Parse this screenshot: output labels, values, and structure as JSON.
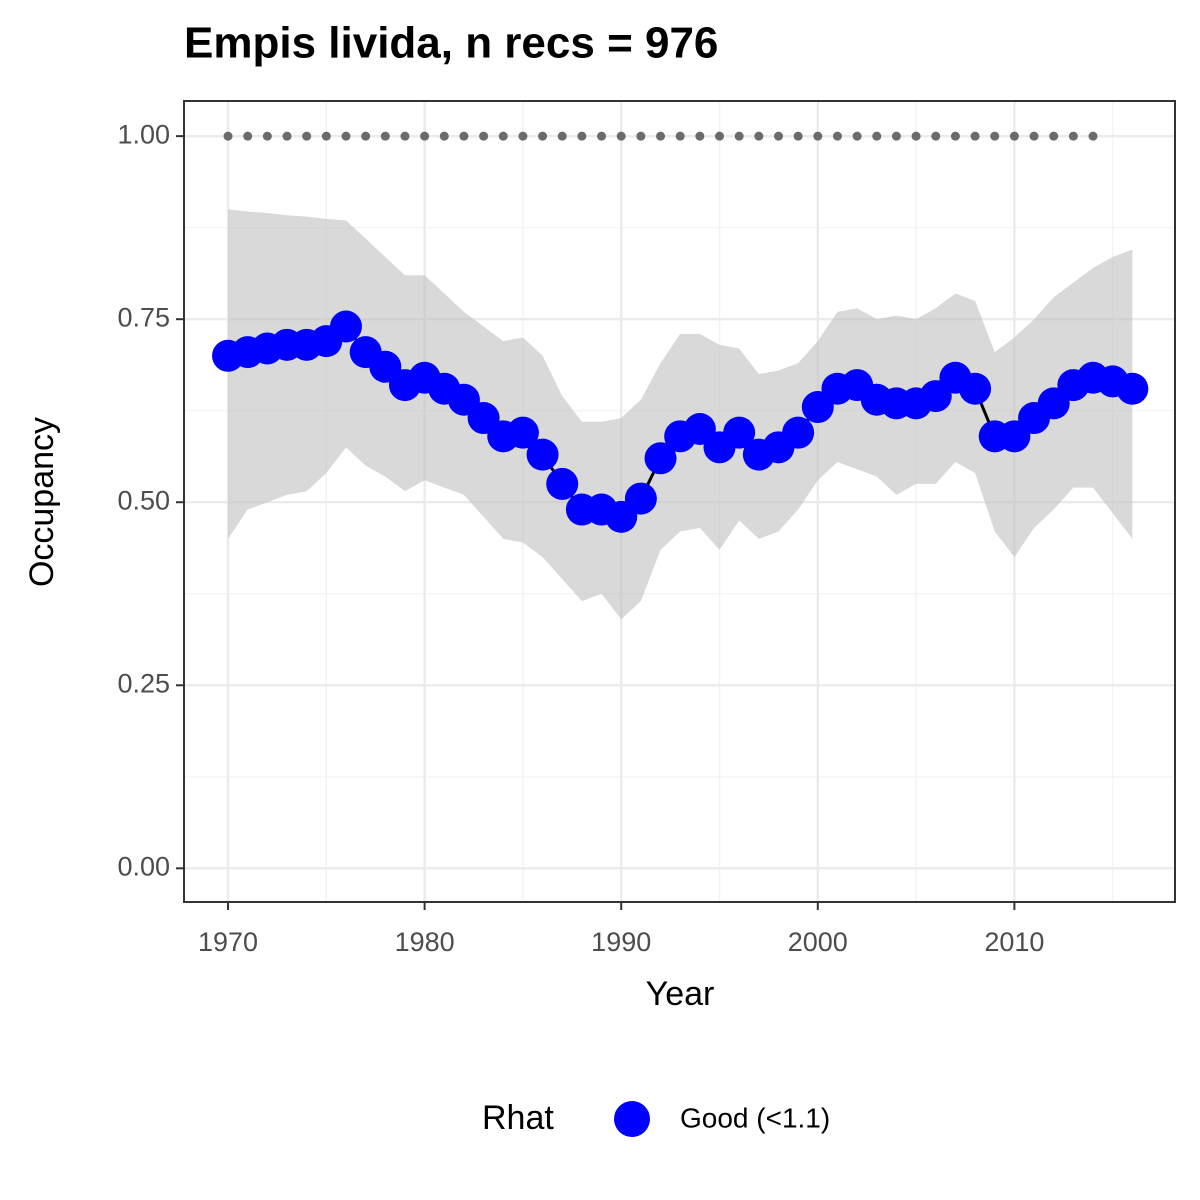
{
  "chart_data": {
    "type": "line",
    "title": "Empis livida, n recs = 976",
    "x_label": "Year",
    "y_label": "Occupancy",
    "legend_title": "Rhat",
    "legend_position": "bottom",
    "grid": true,
    "x": [
      1970,
      1971,
      1972,
      1973,
      1974,
      1975,
      1976,
      1977,
      1978,
      1979,
      1980,
      1981,
      1982,
      1983,
      1984,
      1985,
      1986,
      1987,
      1988,
      1989,
      1990,
      1991,
      1992,
      1993,
      1994,
      1995,
      1996,
      1997,
      1998,
      1999,
      2000,
      2001,
      2002,
      2003,
      2004,
      2005,
      2006,
      2007,
      2008,
      2009,
      2010,
      2011,
      2012,
      2013,
      2014,
      2015,
      2016
    ],
    "series": [
      {
        "name": "Good (<1.1)",
        "color": "#0000ff",
        "values": [
          0.7,
          0.705,
          0.71,
          0.715,
          0.715,
          0.72,
          0.74,
          0.705,
          0.685,
          0.66,
          0.67,
          0.655,
          0.64,
          0.615,
          0.59,
          0.595,
          0.565,
          0.525,
          0.49,
          0.49,
          0.48,
          0.505,
          0.56,
          0.59,
          0.6,
          0.575,
          0.595,
          0.565,
          0.575,
          0.595,
          0.63,
          0.655,
          0.66,
          0.64,
          0.635,
          0.635,
          0.645,
          0.67,
          0.655,
          0.59,
          0.59,
          0.615,
          0.635,
          0.66,
          0.67,
          0.665,
          0.655
        ],
        "upper": [
          0.9,
          0.897,
          0.895,
          0.892,
          0.89,
          0.887,
          0.885,
          0.86,
          0.835,
          0.81,
          0.81,
          0.785,
          0.76,
          0.74,
          0.72,
          0.725,
          0.7,
          0.645,
          0.61,
          0.61,
          0.615,
          0.64,
          0.69,
          0.73,
          0.73,
          0.715,
          0.71,
          0.675,
          0.68,
          0.69,
          0.72,
          0.76,
          0.765,
          0.75,
          0.755,
          0.75,
          0.765,
          0.785,
          0.775,
          0.705,
          0.725,
          0.75,
          0.78,
          0.8,
          0.82,
          0.835,
          0.845
        ],
        "lower": [
          0.45,
          0.49,
          0.5,
          0.51,
          0.515,
          0.54,
          0.575,
          0.55,
          0.535,
          0.515,
          0.53,
          0.52,
          0.51,
          0.48,
          0.45,
          0.445,
          0.425,
          0.395,
          0.365,
          0.375,
          0.34,
          0.365,
          0.435,
          0.46,
          0.465,
          0.435,
          0.475,
          0.45,
          0.46,
          0.49,
          0.53,
          0.555,
          0.545,
          0.535,
          0.51,
          0.525,
          0.525,
          0.555,
          0.54,
          0.46,
          0.425,
          0.465,
          0.49,
          0.52,
          0.52,
          0.485,
          0.45
        ]
      }
    ],
    "reference": {
      "color": "#6b6b6b",
      "x": [
        1970,
        1971,
        1972,
        1973,
        1974,
        1975,
        1976,
        1977,
        1978,
        1979,
        1980,
        1981,
        1982,
        1983,
        1984,
        1985,
        1986,
        1987,
        1988,
        1989,
        1990,
        1991,
        1992,
        1993,
        1994,
        1995,
        1996,
        1997,
        1998,
        1999,
        2000,
        2001,
        2002,
        2003,
        2004,
        2005,
        2006,
        2007,
        2008,
        2009,
        2010,
        2011,
        2012,
        2013,
        2014
      ],
      "values": [
        1,
        1,
        1,
        1,
        1,
        1,
        1,
        1,
        1,
        1,
        1,
        1,
        1,
        1,
        1,
        1,
        1,
        1,
        1,
        1,
        1,
        1,
        1,
        1,
        1,
        1,
        1,
        1,
        1,
        1,
        1,
        1,
        1,
        1,
        1,
        1,
        1,
        1,
        1,
        1,
        1,
        1,
        1,
        1,
        1
      ]
    },
    "band_color": "#bfbfbf",
    "xlim": [
      1967.76,
      2018.17
    ],
    "ylim": [
      -0.046,
      1.048
    ],
    "xticks": [
      1970,
      1980,
      1990,
      2000,
      2010
    ],
    "yticks": [
      {
        "value": 0,
        "label": "0.00"
      },
      {
        "value": 0.25,
        "label": "0.25"
      },
      {
        "value": 0.5,
        "label": "0.50"
      },
      {
        "value": 0.75,
        "label": "0.75"
      },
      {
        "value": 1,
        "label": "1.00"
      }
    ]
  }
}
